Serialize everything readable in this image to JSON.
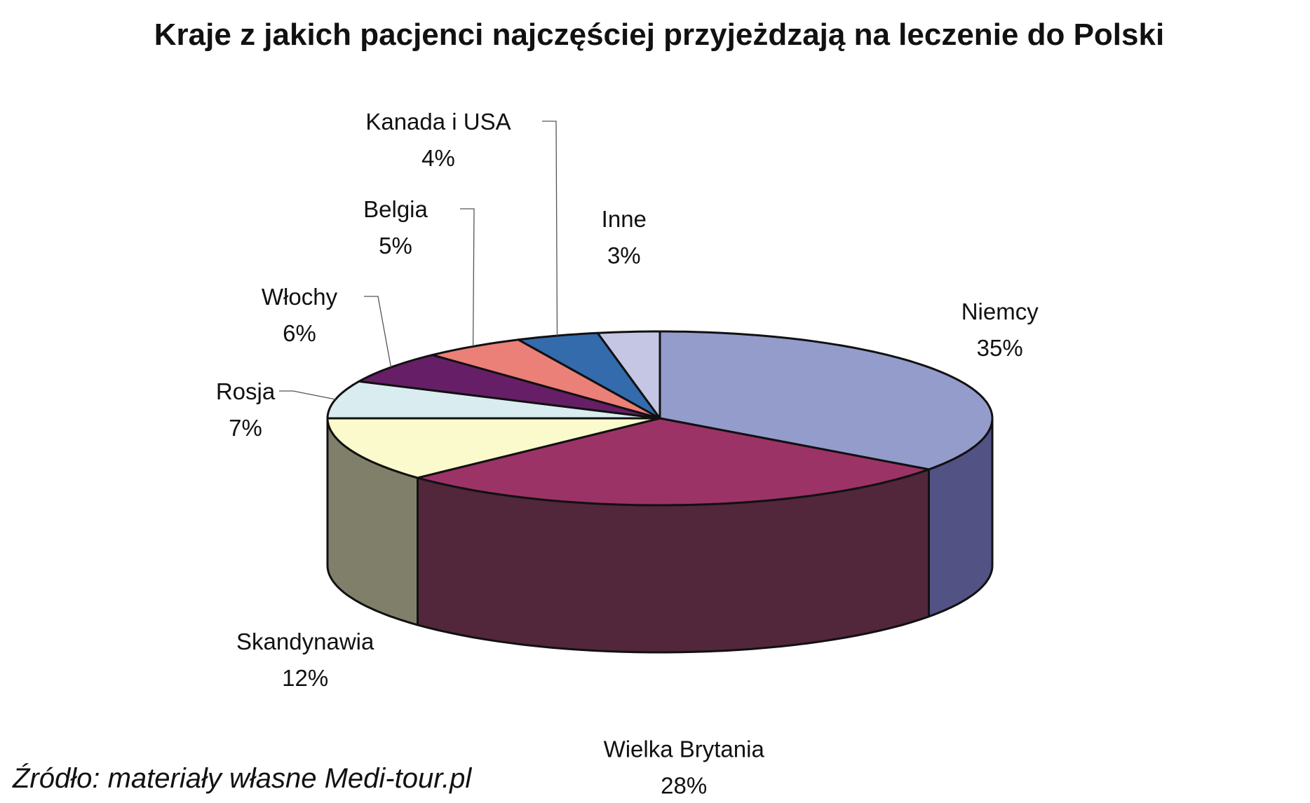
{
  "chart_data": {
    "type": "pie",
    "title": "Kraje z jakich pacjenci najczęściej przyjeżdzają  na leczenie do Polski",
    "source": "Źródło: materiały własne Medi-tour.pl",
    "slices": [
      {
        "label": "Niemcy",
        "value": 35,
        "value_label": "35%",
        "color": "#949ccc",
        "side_color": "#525285"
      },
      {
        "label": "Wielka Brytania",
        "value": 28,
        "value_label": "28%",
        "color": "#9c3366",
        "side_color": "#52263b"
      },
      {
        "label": "Skandynawia",
        "value": 12,
        "value_label": "12%",
        "color": "#fafacc",
        "side_color": "#80806a"
      },
      {
        "label": "Rosja",
        "value": 7,
        "value_label": "7%",
        "color": "#d9ecf0",
        "side_color": "#8a9aa0"
      },
      {
        "label": "Włochy",
        "value": 6,
        "value_label": "6%",
        "color": "#661f66",
        "side_color": "#3a123a"
      },
      {
        "label": "Belgia",
        "value": 5,
        "value_label": "5%",
        "color": "#eb8078",
        "side_color": "#8a4a46"
      },
      {
        "label": "Kanada i USA",
        "value": 4,
        "value_label": "4%",
        "color": "#336bad",
        "side_color": "#1e3f66"
      },
      {
        "label": "Inne",
        "value": 3,
        "value_label": "3%",
        "color": "#c4c6e3",
        "side_color": "#7a7c98"
      }
    ]
  }
}
